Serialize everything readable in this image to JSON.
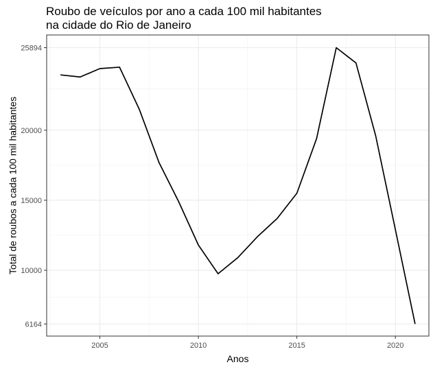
{
  "chart_data": {
    "type": "line",
    "title_lines": [
      "Roubo de veículos por ano a cada 100 mil habitantes",
      "na cidade do Rio de Janeiro"
    ],
    "xlabel": "Anos",
    "ylabel": "Total de roubos a cada 100 mil habitantes",
    "x_ticks": [
      2005,
      2010,
      2015,
      2020
    ],
    "y_ticks": [
      6164,
      10000,
      15000,
      20000,
      25894
    ],
    "xlim": [
      2002.3,
      2021.7
    ],
    "ylim": [
      5300,
      26800
    ],
    "grid": true,
    "line_color": "#000000",
    "series": [
      {
        "x": [
          2003,
          2004,
          2005,
          2006,
          2007,
          2008,
          2009,
          2010,
          2011,
          2012,
          2013,
          2014,
          2015,
          2016,
          2017,
          2018,
          2019,
          2020,
          2021
        ],
        "values": [
          23950,
          23800,
          24400,
          24500,
          21500,
          17700,
          14900,
          11800,
          9750,
          10900,
          12400,
          13700,
          15500,
          19400,
          25894,
          24800,
          19600,
          12900,
          6164
        ]
      }
    ]
  }
}
